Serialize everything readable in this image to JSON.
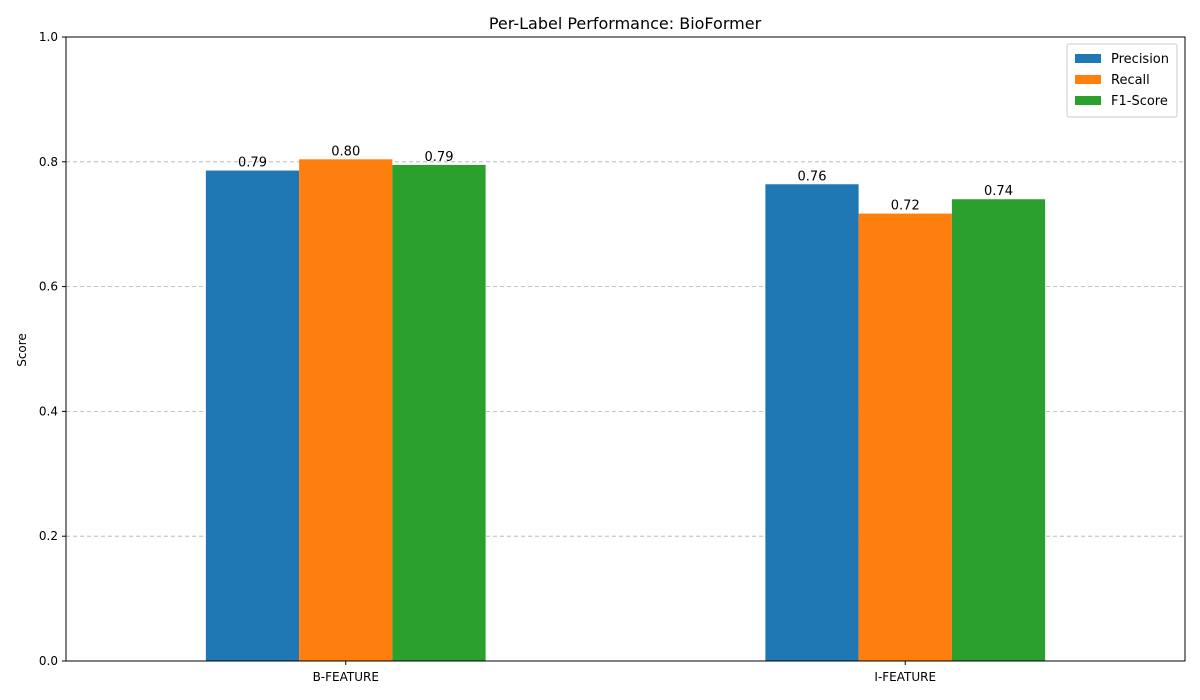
{
  "chart_data": {
    "type": "bar",
    "title": "Per-Label Performance: BioFormer",
    "xlabel": "",
    "ylabel": "Score",
    "categories": [
      "B-FEATURE",
      "I-FEATURE"
    ],
    "series": [
      {
        "name": "Precision",
        "color": "#1f77b4",
        "values": [
          0.786,
          0.764
        ],
        "labels": [
          "0.79",
          "0.76"
        ]
      },
      {
        "name": "Recall",
        "color": "#ff7f0e",
        "values": [
          0.804,
          0.717
        ],
        "labels": [
          "0.80",
          "0.72"
        ]
      },
      {
        "name": "F1-Score",
        "color": "#2ca02c",
        "values": [
          0.795,
          0.74
        ],
        "labels": [
          "0.79",
          "0.74"
        ]
      }
    ],
    "ylim": [
      0,
      1.0
    ],
    "yticks": [
      "0.0",
      "0.2",
      "0.4",
      "0.6",
      "0.8",
      "1.0"
    ],
    "grid": "y-dashed",
    "legend_position": "top-right"
  }
}
